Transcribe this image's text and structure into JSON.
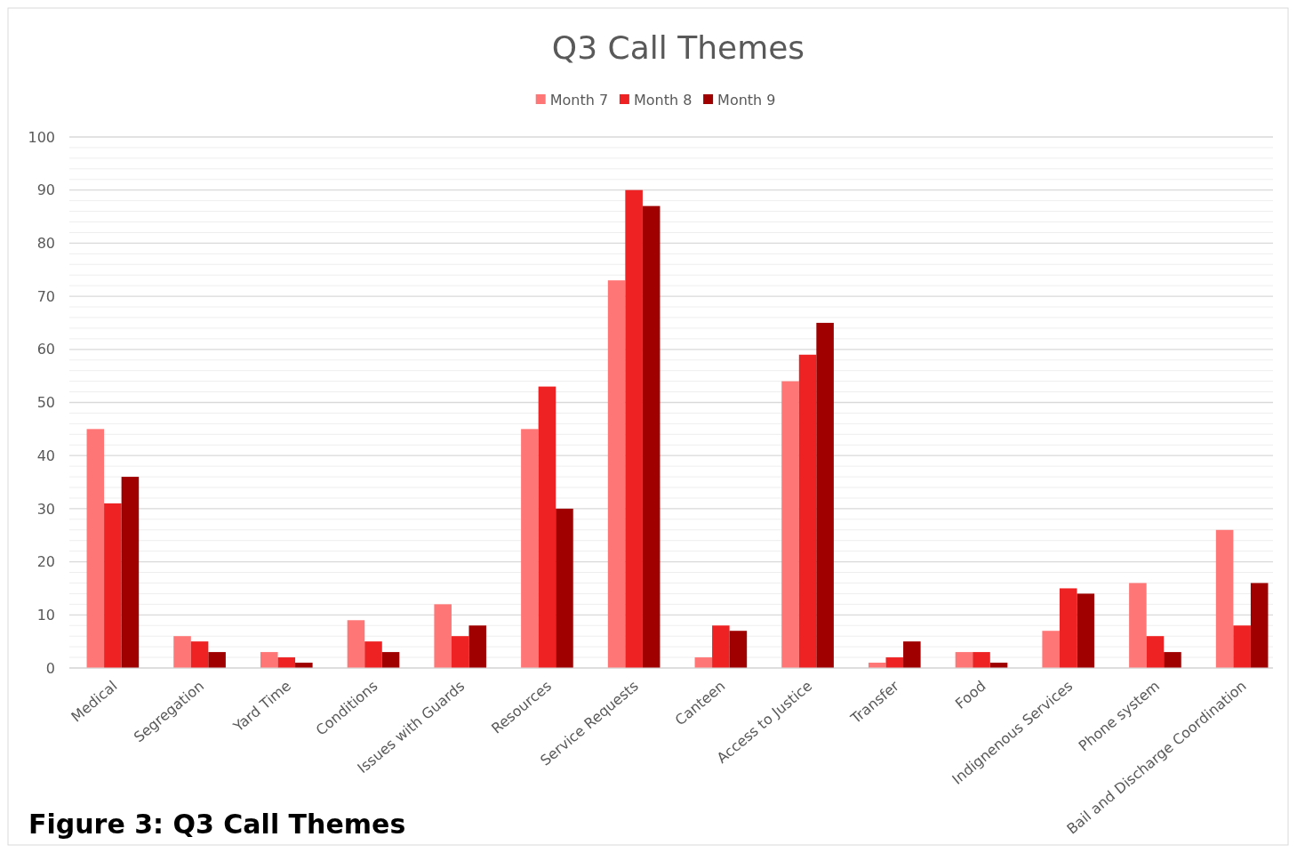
{
  "chart_data": {
    "type": "bar",
    "title": "Q3 Call Themes",
    "categories": [
      "Medical",
      "Segregation",
      "Yard Time",
      "Conditions",
      "Issues with Guards",
      "Resources",
      "Service Requests",
      "Canteen",
      "Access to Justice",
      "Transfer",
      "Food",
      "Indignenous Services",
      "Phone system",
      "Bail and Discharge Coordination"
    ],
    "series": [
      {
        "name": "Month 7",
        "color": "#ff7676",
        "values": [
          45,
          6,
          3,
          9,
          12,
          45,
          73,
          2,
          54,
          1,
          3,
          7,
          16,
          26
        ]
      },
      {
        "name": "Month 8",
        "color": "#ee2222",
        "values": [
          31,
          5,
          2,
          5,
          6,
          53,
          90,
          8,
          59,
          2,
          3,
          15,
          6,
          8
        ]
      },
      {
        "name": "Month 9",
        "color": "#a00000",
        "values": [
          36,
          3,
          1,
          3,
          8,
          30,
          87,
          7,
          65,
          5,
          1,
          14,
          3,
          16
        ]
      }
    ],
    "ylim": [
      0,
      100
    ],
    "yticks": [
      0,
      {
        "value": 2,
        "label": null
      },
      {
        "value": 4,
        "label": null
      },
      {
        "value": 6,
        "label": null
      },
      {
        "value": 8,
        "label": null
      },
      10,
      {
        "value": 12,
        "label": null
      },
      {
        "value": 14,
        "label": null
      },
      {
        "value": 16,
        "label": null
      },
      {
        "value": 18,
        "label": null
      },
      20,
      {
        "value": 22,
        "label": null
      },
      {
        "value": 24,
        "label": null
      },
      {
        "value": 26,
        "label": null
      },
      {
        "value": 28,
        "label": null
      },
      30,
      {
        "value": 32,
        "label": null
      },
      {
        "value": 34,
        "label": null
      },
      {
        "value": 36,
        "label": null
      },
      {
        "value": 38,
        "label": null
      },
      40,
      {
        "value": 42,
        "label": null
      },
      {
        "value": 44,
        "label": null
      },
      {
        "value": 46,
        "label": null
      },
      {
        "value": 48,
        "label": null
      },
      50,
      {
        "value": 52,
        "label": null
      },
      {
        "value": 54,
        "label": null
      },
      {
        "value": 56,
        "label": null
      },
      {
        "value": 58,
        "label": null
      },
      60,
      {
        "value": 62,
        "label": null
      },
      {
        "value": 64,
        "label": null
      },
      {
        "value": 66,
        "label": null
      },
      {
        "value": 68,
        "label": null
      },
      70,
      {
        "value": 72,
        "label": null
      },
      {
        "value": 74,
        "label": null
      },
      {
        "value": 76,
        "label": null
      },
      {
        "value": 78,
        "label": null
      },
      80,
      {
        "value": 82,
        "label": null
      },
      {
        "value": 84,
        "label": null
      },
      {
        "value": 86,
        "label": null
      },
      {
        "value": 88,
        "label": null
      },
      90,
      {
        "value": 92,
        "label": null
      },
      {
        "value": 94,
        "label": null
      },
      {
        "value": 96,
        "label": null
      },
      {
        "value": 98,
        "label": null
      },
      100
    ],
    "grid": "y",
    "legend": "top",
    "annotations": [
      "Figure 3: Q3 Call Themes"
    ]
  }
}
